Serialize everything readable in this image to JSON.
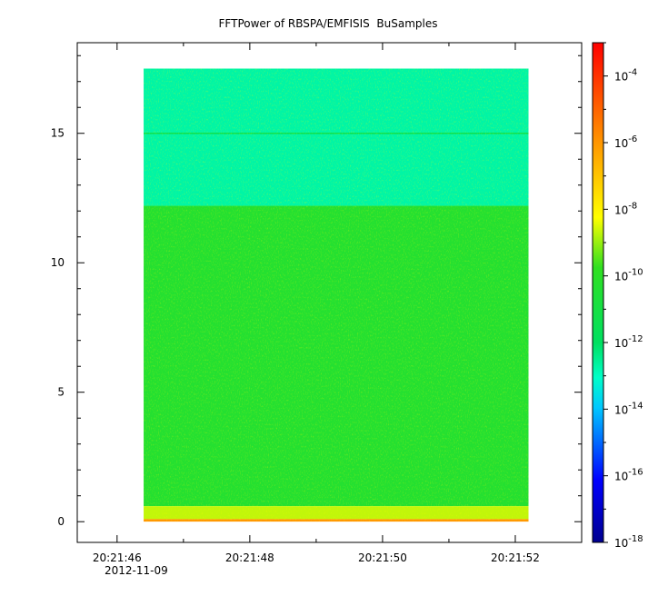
{
  "chart_data": {
    "type": "heatmap",
    "title": "FFTPower of RBSPA/EMFISIS  BuSamples",
    "xlabel": "",
    "ylabel": "",
    "x_range": [
      "20:21:45.4",
      "20:21:53.0"
    ],
    "data_x_range": [
      "20:21:46.4",
      "20:21:52.2"
    ],
    "x_ticks": [
      "20:21:46",
      "20:21:48",
      "20:21:50",
      "20:21:52"
    ],
    "x_date_label": "2012-11-09",
    "ylim": [
      -0.8,
      18.5
    ],
    "y_ticks": [
      0,
      5,
      10,
      15
    ],
    "data_y_range": [
      0,
      17.5
    ],
    "colorbar": {
      "scale": "log",
      "colormap": "rainbow",
      "range": [
        1e-18,
        0.001
      ],
      "ticks": [
        {
          "base": "10",
          "exp": "-4",
          "value": 0.0001
        },
        {
          "base": "10",
          "exp": "-6",
          "value": 1e-06
        },
        {
          "base": "10",
          "exp": "-8",
          "value": 1e-08
        },
        {
          "base": "10",
          "exp": "-10",
          "value": 1e-10
        },
        {
          "base": "10",
          "exp": "-12",
          "value": 1e-12
        },
        {
          "base": "10",
          "exp": "-14",
          "value": 1e-14
        },
        {
          "base": "10",
          "exp": "-16",
          "value": 1e-16
        },
        {
          "base": "10",
          "exp": "-18",
          "value": 1e-18
        }
      ]
    },
    "bands": [
      {
        "y_range": [
          12.2,
          17.5
        ],
        "level_log10": -12.7
      },
      {
        "y_range": [
          0.6,
          12.2
        ],
        "level_log10": -10.3
      },
      {
        "y_range": [
          0.1,
          0.6
        ],
        "level_log10": -8.7
      },
      {
        "y_range": [
          0,
          0.1
        ],
        "level_log10": -6.0
      }
    ],
    "line_features": [
      {
        "y": 15.0,
        "level_log10": -11.3
      }
    ],
    "grid": false
  }
}
